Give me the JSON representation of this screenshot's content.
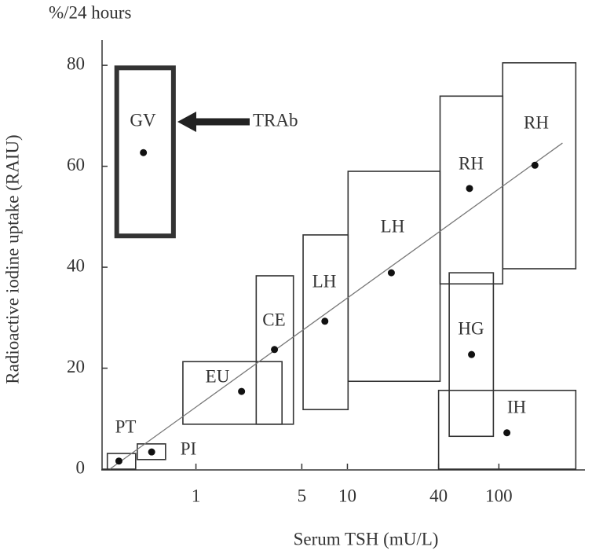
{
  "chart_data": {
    "type": "box-range",
    "y_unit": "%/24 hours",
    "y_label": "Radioactive iodine uptake (RAIU)",
    "x_label": "Serum TSH (mU/L)",
    "x_log": true,
    "xlim": [
      0.24,
      370
    ],
    "xticks": [
      1,
      5,
      10,
      40,
      100
    ],
    "ylim": [
      0,
      85
    ],
    "yticks": [
      0,
      20,
      40,
      60,
      80
    ],
    "boxes": [
      {
        "label": "GV",
        "x": [
          0.3,
          0.71
        ],
        "y": [
          46.2,
          79.5
        ],
        "point": [
          0.45,
          62.7
        ],
        "bold": true
      },
      {
        "label": "PT",
        "x": [
          0.26,
          0.4
        ],
        "y": [
          0,
          3.1
        ],
        "point": [
          0.31,
          1.6
        ]
      },
      {
        "label": "PI",
        "x": [
          0.41,
          0.63
        ],
        "y": [
          1.9,
          5.0
        ],
        "point": [
          0.51,
          3.4
        ]
      },
      {
        "label": "EU",
        "x": [
          0.82,
          3.7
        ],
        "y": [
          8.9,
          21.3
        ],
        "point": [
          2.0,
          15.4
        ]
      },
      {
        "label": "CE",
        "x": [
          2.5,
          4.4
        ],
        "y": [
          8.9,
          38.3
        ],
        "point": [
          3.3,
          23.7
        ]
      },
      {
        "label": "LH",
        "x": [
          5.1,
          10.1
        ],
        "y": [
          11.8,
          46.4
        ],
        "point": [
          7.1,
          29.3
        ]
      },
      {
        "label": "LH",
        "x": [
          10.1,
          40.9
        ],
        "y": [
          17.4,
          59.0
        ],
        "point": [
          19.5,
          38.9
        ]
      },
      {
        "label": "RH",
        "x": [
          40.9,
          106
        ],
        "y": [
          36.7,
          73.9
        ],
        "point": [
          64,
          55.6
        ]
      },
      {
        "label": "RH",
        "x": [
          106,
          322
        ],
        "y": [
          39.7,
          80.5
        ],
        "point": [
          173,
          60.2
        ]
      },
      {
        "label": "HG",
        "x": [
          47,
          92
        ],
        "y": [
          6.5,
          38.9
        ],
        "point": [
          66,
          22.7
        ]
      },
      {
        "label": "IH",
        "x": [
          40,
          322
        ],
        "y": [
          0,
          15.6
        ],
        "point": [
          113,
          7.2
        ]
      }
    ],
    "trend": {
      "x": [
        0.27,
        263
      ],
      "y": [
        0,
        64.6
      ]
    },
    "annotation": "TRAb"
  }
}
